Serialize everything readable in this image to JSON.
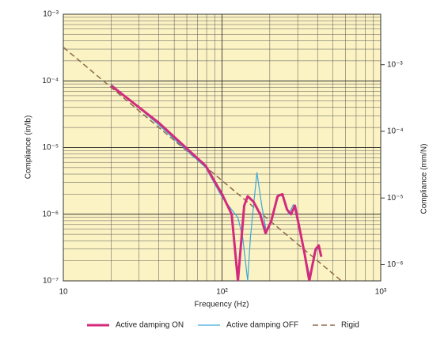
{
  "chart_data": {
    "type": "line",
    "x_label": "Frequency (Hz)",
    "y_label": "Compliance (in/lb)",
    "y2_label": "Compliance (mm/N)",
    "log_x": true,
    "log_y": true,
    "grid": true,
    "minor_grid": true,
    "background": "#fcf3c4",
    "legend": "bottom",
    "xlim": [
      10,
      1000
    ],
    "xticks": [
      10,
      {
        "value": 100,
        "label": "10²"
      },
      {
        "value": 1000,
        "label": "10³"
      }
    ],
    "ylim": [
      1e-07,
      0.001
    ],
    "yticks": [
      {
        "value": 1e-07,
        "label": "10⁻⁷"
      },
      {
        "value": 1e-06,
        "label": "10⁻⁶"
      },
      {
        "value": 1e-05,
        "label": "10⁻⁵"
      },
      {
        "value": 0.0001,
        "label": "10⁻⁴"
      },
      {
        "value": 0.001,
        "label": "10⁻³"
      }
    ],
    "y2lim": [
      5.71e-07,
      0.00571
    ],
    "y2ticks": [
      {
        "value": 1e-06,
        "label": "10⁻⁶"
      },
      {
        "value": 1e-05,
        "label": "10⁻⁵"
      },
      {
        "value": 0.0001,
        "label": "10⁻⁴"
      },
      {
        "value": 0.001,
        "label": "10⁻³"
      }
    ],
    "series": [
      {
        "name": "Active damping ON",
        "color": "#d42a7c",
        "width": 3,
        "dash": "none",
        "x": [
          20,
          39.8,
          79,
          100,
          115,
          120,
          126,
          138,
          145,
          158,
          174,
          188,
          204,
          224,
          240,
          257,
          272,
          288,
          309,
          331,
          355,
          367,
          389,
          407,
          422
        ],
        "values": [
          8.5e-05,
          2.37e-05,
          5.3e-06,
          2e-06,
          1e-06,
          3.4e-07,
          1e-07,
          1.34e-06,
          1.86e-06,
          1.54e-06,
          1e-06,
          5.2e-07,
          7.8e-07,
          1.86e-06,
          2e-06,
          1.17e-06,
          1e-06,
          1.34e-06,
          5.9e-07,
          2.6e-07,
          1e-07,
          1.5e-07,
          3e-07,
          3.4e-07,
          2.3e-07
        ]
      },
      {
        "name": "Active damping OFF",
        "color": "#3aa8da",
        "width": 1.2,
        "dash": "none",
        "x": [
          20,
          39.8,
          79,
          100,
          115,
          126,
          135,
          145,
          151,
          158,
          166,
          178,
          191,
          209,
          229,
          245,
          263,
          282,
          309,
          339,
          359,
          380,
          407,
          426
        ],
        "values": [
          8.9e-05,
          2.2e-05,
          5e-06,
          1.8e-06,
          1.17e-06,
          8.9e-07,
          4.5e-07,
          1e-07,
          4.5e-07,
          1.34e-06,
          4.2e-06,
          1.34e-06,
          5.2e-07,
          1e-06,
          2e-06,
          1.8e-06,
          1e-06,
          1.4e-06,
          5.6e-07,
          2e-07,
          1.15e-07,
          2.6e-07,
          3.2e-07,
          2.3e-07
        ]
      },
      {
        "name": "Rigid",
        "color": "#8a6a4c",
        "width": 1.5,
        "dash": "7 4",
        "x": [
          10,
          600
        ],
        "values": [
          0.00032,
          8.9e-08
        ]
      }
    ]
  }
}
